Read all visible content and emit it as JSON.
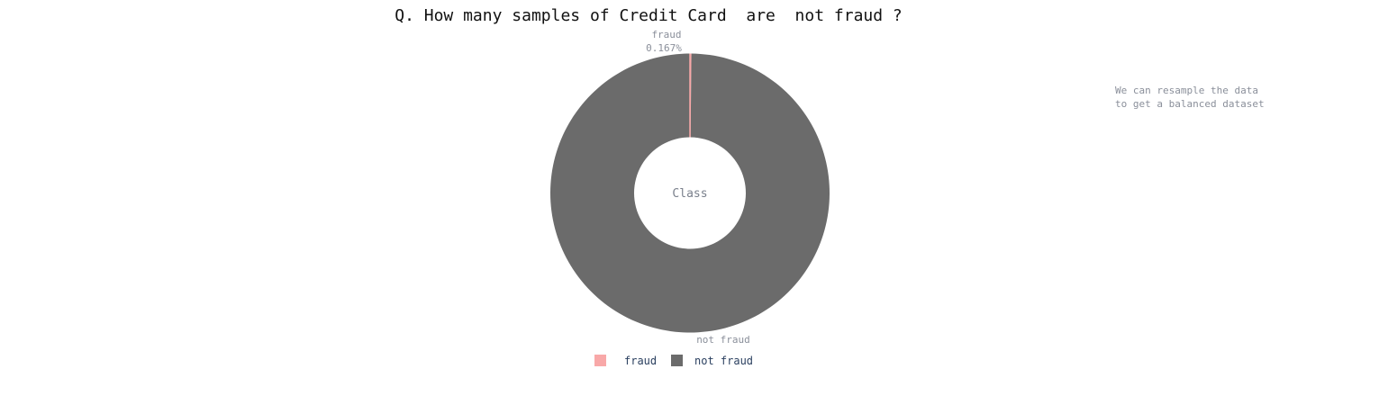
{
  "chart_data": {
    "type": "pie",
    "title": "Q. How many samples of Credit Card  are  not fraud ?",
    "center_label": "Class",
    "categories": [
      "fraud",
      "not fraud"
    ],
    "values": [
      0.167,
      99.833
    ],
    "percent_labels": [
      "0.167%",
      ""
    ],
    "colors": [
      "#f8a8a8",
      "#6b6b6b"
    ],
    "hole": true,
    "legend": {
      "items": [
        "fraud",
        "not fraud"
      ],
      "placement": "bottom"
    },
    "annotation": [
      "We can resample the data",
      "to get a balanced dataset"
    ]
  }
}
